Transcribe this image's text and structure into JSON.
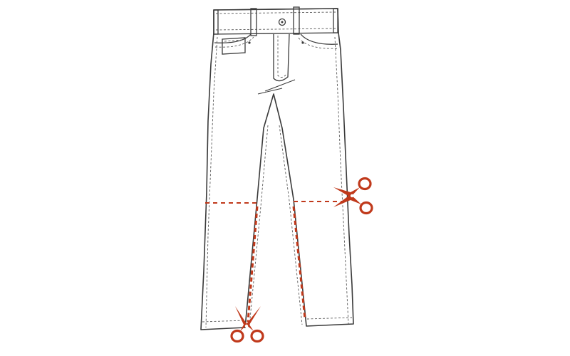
{
  "diagram": {
    "subject": "jeans-flat-sketch",
    "instruction_marks": [
      {
        "name": "knee-cut-line",
        "type": "dashed-line",
        "color": "#c0391b"
      },
      {
        "name": "inseam-left-cut-line",
        "type": "dashed-line",
        "color": "#c0391b"
      },
      {
        "name": "inseam-right-cut-line",
        "type": "dashed-line",
        "color": "#c0391b"
      }
    ],
    "icons": [
      {
        "name": "scissors-icon",
        "placement": "right-knee",
        "color": "#c0391b"
      },
      {
        "name": "scissors-icon",
        "placement": "bottom-left-hem",
        "color": "#c0391b"
      }
    ]
  },
  "colors": {
    "line_art": "#3a3a3a",
    "cut_mark": "#c0391b",
    "background": "#ffffff"
  }
}
